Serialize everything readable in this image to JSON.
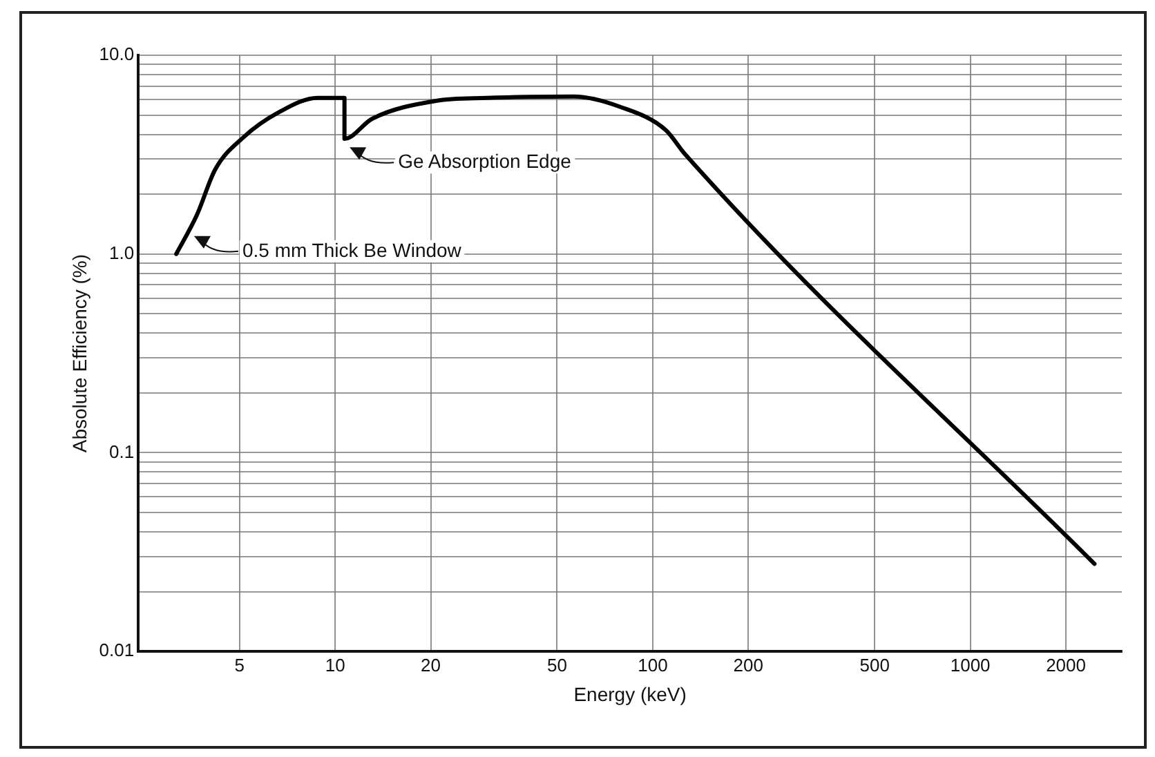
{
  "chart_data": {
    "type": "line",
    "xlabel": "Energy (keV)",
    "ylabel": "Absolute Efficiency (%)",
    "x": [
      3.16,
      3.67,
      4.19,
      5.12,
      6.7,
      8.8,
      10.7,
      10.7,
      13.1,
      20.8,
      30,
      56.5,
      79,
      110,
      126,
      2460
    ],
    "series": [
      {
        "color": "#000000",
        "values": [
          1.0,
          1.57,
          2.66,
          3.84,
          5.2,
          6.1,
          6.1,
          3.8,
          4.8,
          5.9,
          6.1,
          6.2,
          5.5,
          4.2,
          3.2,
          0.0276
        ]
      }
    ],
    "log": "xy",
    "xlim": [
      2.4,
      3000
    ],
    "ylim": [
      0.01,
      10
    ],
    "xticks": [
      5,
      10,
      20,
      50,
      100,
      200,
      500,
      1000,
      2000
    ],
    "yticks": [
      {
        "value": 0.01,
        "label": "0.01"
      },
      {
        "value": 0.02,
        "label": null
      },
      {
        "value": 0.03,
        "label": null
      },
      {
        "value": 0.04,
        "label": null
      },
      {
        "value": 0.05,
        "label": null
      },
      {
        "value": 0.06,
        "label": null
      },
      {
        "value": 0.07,
        "label": null
      },
      {
        "value": 0.08,
        "label": null
      },
      {
        "value": 0.09,
        "label": null
      },
      {
        "value": 0.1,
        "label": "0.1"
      },
      {
        "value": 0.2,
        "label": null
      },
      {
        "value": 0.3,
        "label": null
      },
      {
        "value": 0.4,
        "label": null
      },
      {
        "value": 0.5,
        "label": null
      },
      {
        "value": 0.6,
        "label": null
      },
      {
        "value": 0.7,
        "label": null
      },
      {
        "value": 0.8,
        "label": null
      },
      {
        "value": 0.9,
        "label": null
      },
      {
        "value": 1,
        "label": "1.0"
      },
      {
        "value": 2,
        "label": null
      },
      {
        "value": 3,
        "label": null
      },
      {
        "value": 4,
        "label": null
      },
      {
        "value": 5,
        "label": null
      },
      {
        "value": 6,
        "label": null
      },
      {
        "value": 7,
        "label": null
      },
      {
        "value": 8,
        "label": null
      },
      {
        "value": 9,
        "label": null
      },
      {
        "value": 10,
        "label": "10.0"
      }
    ],
    "grid": true,
    "legend": false,
    "marker": "none",
    "line_style": "solid",
    "annotations": [
      {
        "text": "Ge Absorption Edge",
        "x": 11,
        "y": 3.5
      },
      {
        "text": "0.5 mm Thick Be Window",
        "x": 3.56,
        "y": 1.25
      }
    ]
  }
}
